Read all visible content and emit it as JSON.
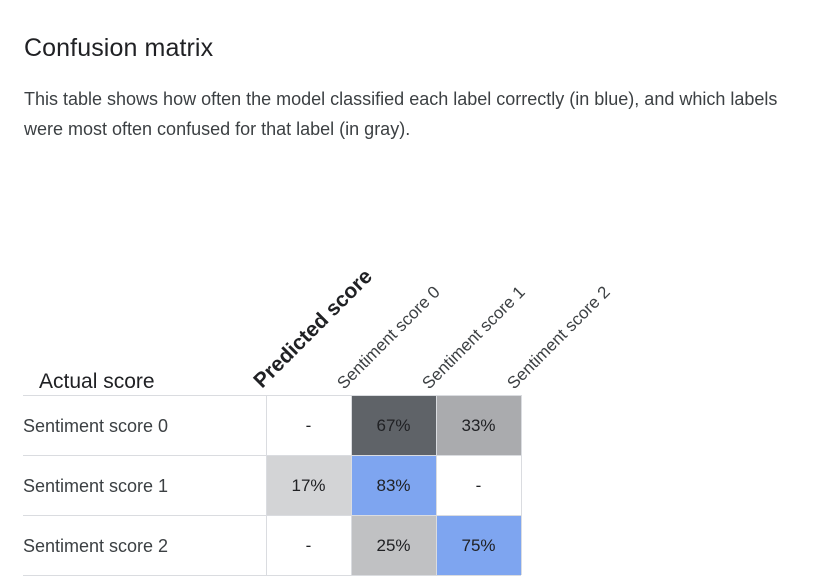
{
  "header": {
    "title": "Confusion matrix",
    "description": "This table shows how often the model classified each label correctly (in blue), and which labels were most often confused for that label (in gray)."
  },
  "chart_data": {
    "type": "heatmap",
    "title": "Confusion matrix",
    "row_axis_label": "Actual score",
    "column_axis_label": "Predicted score",
    "rows": [
      "Sentiment score 0",
      "Sentiment score 1",
      "Sentiment score 2"
    ],
    "columns": [
      "Sentiment score 0",
      "Sentiment score 1",
      "Sentiment score 2"
    ],
    "cells": [
      [
        "-",
        "67%",
        "33%"
      ],
      [
        "17%",
        "83%",
        "-"
      ],
      [
        "-",
        "25%",
        "75%"
      ]
    ],
    "cell_colors": [
      [
        "#ffffff",
        "#5f6368",
        "#aaabae"
      ],
      [
        "#d3d4d6",
        "#7ea5f0",
        "#ffffff"
      ],
      [
        "#ffffff",
        "#c0c1c3",
        "#7ea5f0"
      ]
    ],
    "colors": {
      "correct": "#7ea5f0",
      "confused_dark": "#5f6368",
      "confused_mid": "#aaabae",
      "confused_light": "#d3d4d6",
      "grid_line": "#dadce0"
    }
  }
}
